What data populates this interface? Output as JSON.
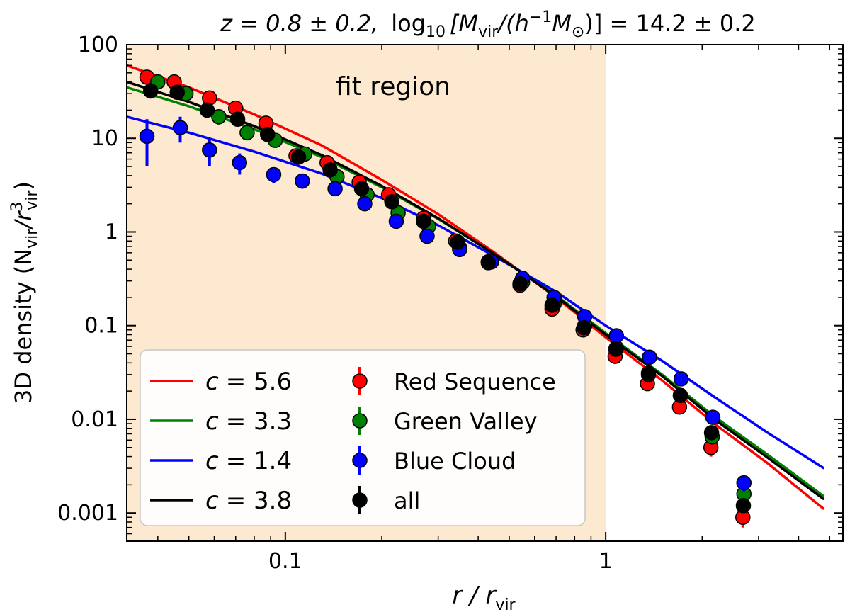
{
  "chart_data": {
    "type": "scatter",
    "title": {
      "z_part": "z = 0.8 ± 0.2,",
      "log_part": "log",
      "log_sub": "10",
      "bracket_open": "[M",
      "vir_sub": "vir",
      "slash_h": "/(h",
      "h_sup": "−1",
      "m_sun": "M",
      "sun_sub": "⊙",
      "bracket_close": ")] = 14.2 ± 0.2"
    },
    "xlabel": {
      "main": "r / r",
      "sub": "vir"
    },
    "ylabel": {
      "prefix": "3D density (N",
      "sub1": "vir",
      "mid": "/r",
      "sup": "3",
      "sub2": "vir",
      "suffix": ")"
    },
    "xscale": "log",
    "yscale": "log",
    "xlim": [
      0.032,
      5.5
    ],
    "ylim": [
      0.0005,
      100
    ],
    "x_tick_labels": [
      {
        "value": 0.1,
        "label": "0.1"
      },
      {
        "value": 1,
        "label": "1"
      }
    ],
    "y_tick_labels": [
      {
        "value": 100,
        "label": "100"
      },
      {
        "value": 10,
        "label": "10"
      },
      {
        "value": 1,
        "label": "1"
      },
      {
        "value": 0.1,
        "label": "0.1"
      },
      {
        "value": 0.01,
        "label": "0.01"
      },
      {
        "value": 0.001,
        "label": "0.001"
      }
    ],
    "fit_region": {
      "x_range": [
        0.032,
        1.0
      ],
      "label": "fit region",
      "color": "#fde8d0"
    },
    "legend": {
      "position": "lower-left"
    },
    "fit_lines": [
      {
        "label": "c = 5.6",
        "c_label": "c",
        "value_label": "= 5.6",
        "color": "#ff0000",
        "x": [
          0.032,
          0.05,
          0.08,
          0.13,
          0.2,
          0.3,
          0.45,
          0.7,
          1.0,
          1.5,
          2.2,
          3.2,
          4.8
        ],
        "y": [
          60,
          35,
          18,
          8.4,
          3.6,
          1.55,
          0.6,
          0.2,
          0.075,
          0.026,
          0.0088,
          0.0034,
          0.0011
        ]
      },
      {
        "label": "c = 3.3",
        "c_label": "c",
        "value_label": "= 3.3",
        "color": "#008000",
        "x": [
          0.032,
          0.05,
          0.08,
          0.13,
          0.2,
          0.3,
          0.45,
          0.7,
          1.0,
          1.5,
          2.2,
          3.2,
          4.8
        ],
        "y": [
          35,
          22,
          12.5,
          6.3,
          3.0,
          1.38,
          0.58,
          0.21,
          0.083,
          0.03,
          0.0105,
          0.0042,
          0.0015
        ]
      },
      {
        "label": "c = 1.4",
        "c_label": "c",
        "value_label": "= 1.4",
        "color": "#0000ff",
        "x": [
          0.032,
          0.05,
          0.08,
          0.13,
          0.2,
          0.3,
          0.45,
          0.7,
          1.0,
          1.5,
          2.2,
          3.2,
          4.8
        ],
        "y": [
          17,
          11.5,
          7.2,
          4.2,
          2.3,
          1.18,
          0.55,
          0.23,
          0.1,
          0.042,
          0.017,
          0.0072,
          0.003
        ]
      },
      {
        "label": "c = 3.8",
        "c_label": "c",
        "value_label": "= 3.8",
        "color": "#000000",
        "x": [
          0.032,
          0.05,
          0.08,
          0.13,
          0.2,
          0.3,
          0.45,
          0.7,
          1.0,
          1.5,
          2.2,
          3.2,
          4.8
        ],
        "y": [
          40,
          24.5,
          13.5,
          6.6,
          3.1,
          1.4,
          0.58,
          0.205,
          0.08,
          0.029,
          0.0098,
          0.0039,
          0.0014
        ]
      }
    ],
    "series": [
      {
        "name": "Red Sequence",
        "color": "#ff0000",
        "x": [
          0.037,
          0.045,
          0.058,
          0.07,
          0.087,
          0.108,
          0.135,
          0.17,
          0.21,
          0.27,
          0.34,
          0.43,
          0.54,
          0.68,
          0.85,
          1.07,
          1.35,
          1.7,
          2.13,
          2.68
        ],
        "y": [
          45,
          40,
          27,
          21,
          14.5,
          6.5,
          5.5,
          3.4,
          2.5,
          1.4,
          0.8,
          0.48,
          0.27,
          0.15,
          0.09,
          0.047,
          0.024,
          0.0135,
          0.005,
          0.0009
        ],
        "err": [
          6,
          5,
          3,
          2.5,
          2,
          0.8,
          0.6,
          0.4,
          0.3,
          0.15,
          0.09,
          0.05,
          0.03,
          0.02,
          0.01,
          0.005,
          0.003,
          0.002,
          0.001,
          0.0002
        ]
      },
      {
        "name": "Green Valley",
        "color": "#008000",
        "x": [
          0.04,
          0.049,
          0.062,
          0.076,
          0.093,
          0.115,
          0.145,
          0.18,
          0.225,
          0.28,
          0.35,
          0.44,
          0.55,
          0.69,
          0.86,
          1.08,
          1.36,
          1.71,
          2.15,
          2.7
        ],
        "y": [
          40,
          30,
          17,
          11.5,
          9.5,
          6.8,
          3.9,
          2.5,
          1.6,
          1.15,
          0.68,
          0.48,
          0.29,
          0.17,
          0.1,
          0.058,
          0.03,
          0.018,
          0.0065,
          0.0016
        ],
        "err": [
          6,
          5,
          3,
          2,
          1.3,
          0.9,
          0.5,
          0.3,
          0.2,
          0.13,
          0.08,
          0.05,
          0.03,
          0.02,
          0.01,
          0.006,
          0.004,
          0.002,
          0.001,
          0.0003
        ]
      },
      {
        "name": "Blue Cloud",
        "color": "#0000ff",
        "x": [
          0.037,
          0.047,
          0.058,
          0.072,
          0.092,
          0.113,
          0.143,
          0.177,
          0.222,
          0.277,
          0.35,
          0.44,
          0.55,
          0.69,
          0.86,
          1.08,
          1.37,
          1.72,
          2.16,
          2.7
        ],
        "y": [
          10.5,
          13,
          7.5,
          5.5,
          4.1,
          3.5,
          2.9,
          2.0,
          1.3,
          0.9,
          0.65,
          0.48,
          0.32,
          0.2,
          0.125,
          0.078,
          0.046,
          0.027,
          0.0105,
          0.0021
        ],
        "err": [
          5.5,
          4,
          2.5,
          1.4,
          0.8,
          0.6,
          0.4,
          0.25,
          0.15,
          0.1,
          0.07,
          0.05,
          0.03,
          0.02,
          0.012,
          0.007,
          0.004,
          0.003,
          0.0015,
          0.0004
        ]
      },
      {
        "name": "all",
        "color": "#000000",
        "x": [
          0.038,
          0.046,
          0.057,
          0.071,
          0.088,
          0.11,
          0.138,
          0.173,
          0.215,
          0.27,
          0.345,
          0.43,
          0.54,
          0.68,
          0.855,
          1.075,
          1.36,
          1.71,
          2.14,
          2.69
        ],
        "y": [
          32,
          31,
          20,
          16,
          11,
          6.3,
          4.6,
          2.9,
          2.1,
          1.3,
          0.78,
          0.47,
          0.28,
          0.165,
          0.095,
          0.056,
          0.031,
          0.018,
          0.0072,
          0.0012
        ],
        "err": [
          4,
          3.5,
          2.4,
          1.8,
          1.2,
          0.7,
          0.5,
          0.3,
          0.2,
          0.12,
          0.07,
          0.04,
          0.025,
          0.015,
          0.009,
          0.005,
          0.003,
          0.002,
          0.001,
          0.0002
        ]
      }
    ]
  }
}
